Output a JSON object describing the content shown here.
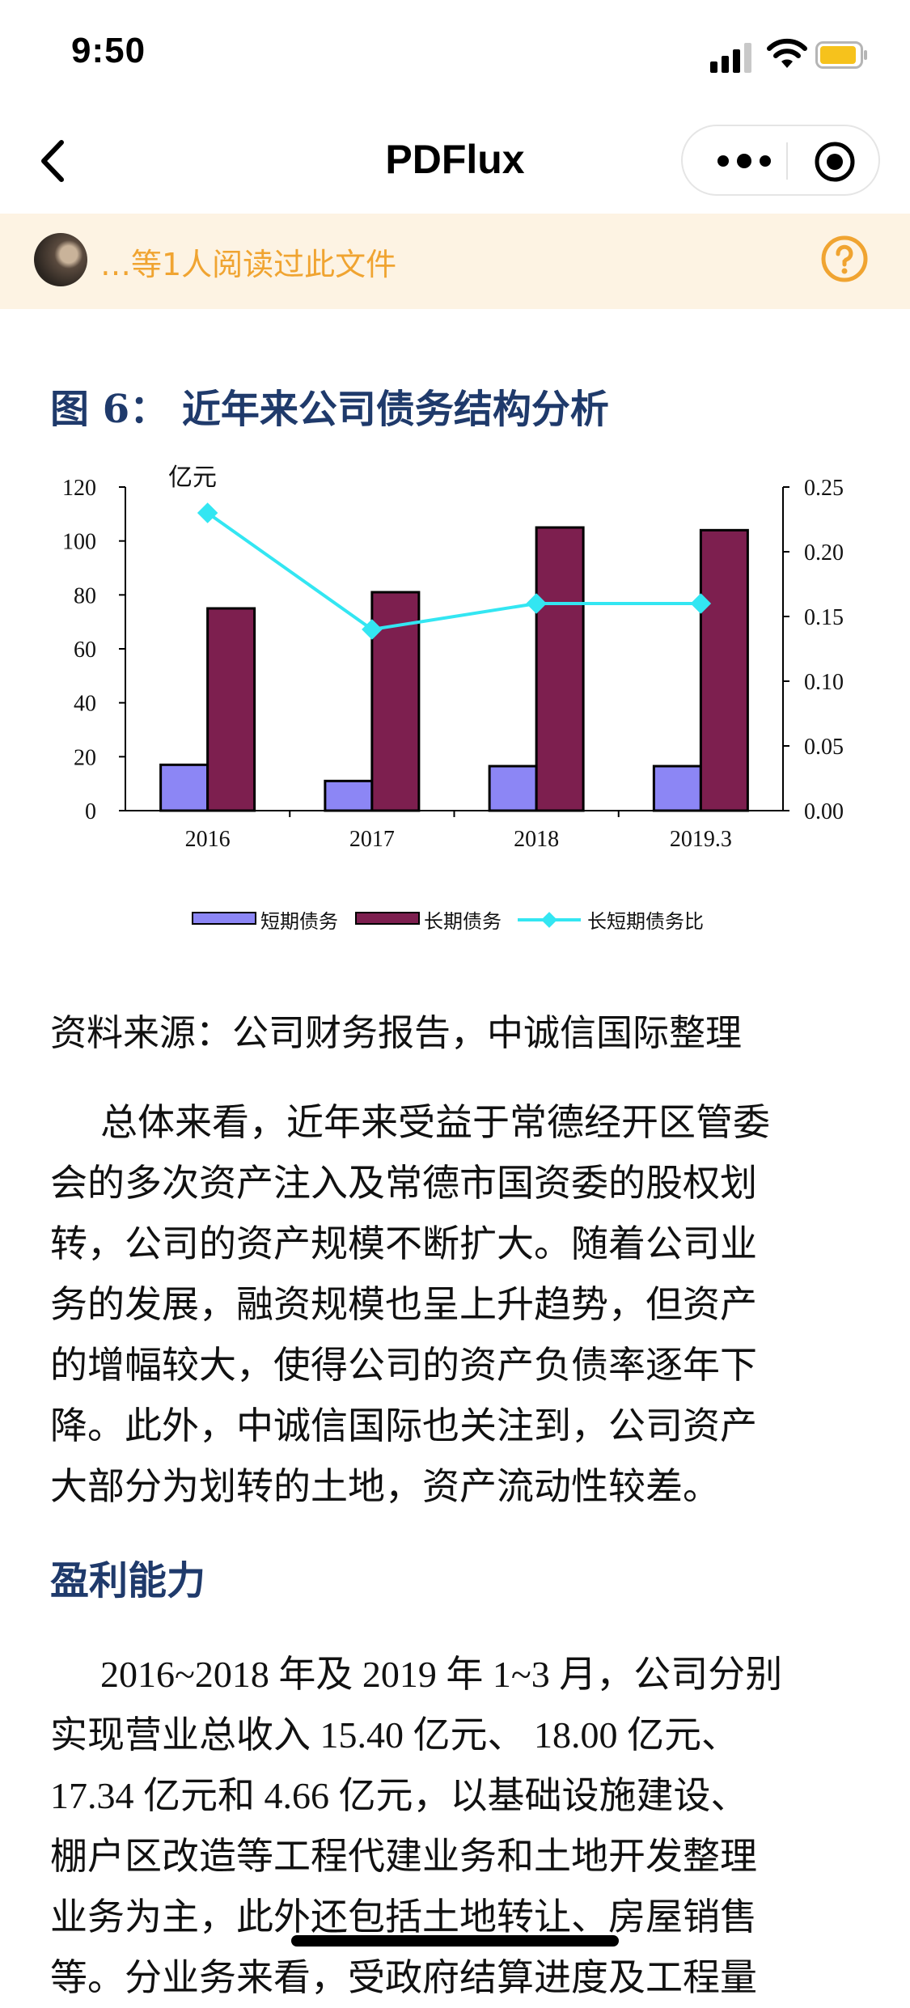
{
  "status_bar": {
    "time": "9:50"
  },
  "nav": {
    "title": "PDFlux"
  },
  "banner": {
    "text": "…等1人阅读过此文件"
  },
  "document": {
    "figure_title": "图 6：  近年来公司债务结构分析",
    "source": "资料来源：公司财务报告，中诚信国际整理",
    "paragraph1_lines": [
      "总体来看，近年来受益于常德经开区管委",
      "会的多次资产注入及常德市国资委的股权划",
      "转，公司的资产规模不断扩大。随着公司业",
      "务的发展，融资规模也呈上升趋势，但资产",
      "的增幅较大，使得公司的资产负债率逐年下",
      "降。此外，中诚信国际也关注到，公司资产",
      "大部分为划转的土地，资产流动性较差。"
    ],
    "section_title": "盈利能力",
    "paragraph2_lines": [
      "2016~2018 年及 2019 年 1~3 月，公司分别",
      "实现营业总收入 15.40 亿元、 18.00 亿元、",
      "17.34 亿元和 4.66 亿元，以基础设施建设、",
      "棚户区改造等工程代建业务和土地开发整理",
      "业务为主，此外还包括土地转让、房屋销售",
      "等。分业务来看，受政府结算进度及工程量"
    ]
  },
  "chart_data": {
    "type": "bar",
    "categories": [
      "2016",
      "2017",
      "2018",
      "2019.3"
    ],
    "left_unit_label": "亿元",
    "left_axis": {
      "min": 0,
      "max": 120,
      "ticks": [
        "0",
        "20",
        "40",
        "60",
        "80",
        "100",
        "120"
      ]
    },
    "right_axis": {
      "min": 0,
      "max": 0.25,
      "ticks": [
        "0.00",
        "0.05",
        "0.10",
        "0.15",
        "0.20",
        "0.25"
      ]
    },
    "series": [
      {
        "name": "短期债务",
        "type": "bar",
        "axis": "left",
        "color": "#8c86f5",
        "values": [
          17,
          11,
          16.5,
          16.5
        ]
      },
      {
        "name": "长期债务",
        "type": "bar",
        "axis": "left",
        "color": "#7d1f4f",
        "values": [
          75,
          81,
          105,
          104
        ]
      },
      {
        "name": "长短期债务比",
        "type": "line",
        "axis": "right",
        "color": "#33e6f2",
        "values": [
          0.23,
          0.14,
          0.16,
          0.16
        ]
      }
    ],
    "legend_position": "bottom"
  }
}
